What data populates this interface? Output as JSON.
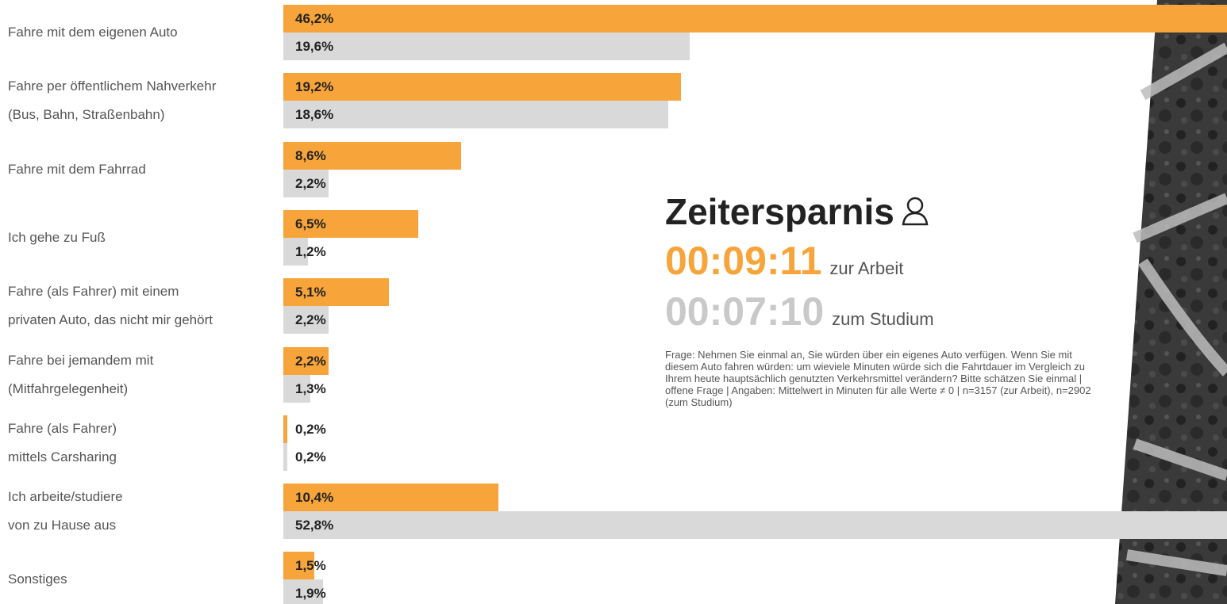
{
  "chart_data": {
    "type": "bar",
    "orientation": "horizontal",
    "categories": [
      "Fahre mit dem eigenen Auto",
      "Fahre per öffentlichem Nahverkehr\n(Bus, Bahn, Straßenbahn)",
      "Fahre mit dem Fahrrad",
      "Ich gehe zu Fuß",
      "Fahre (als Fahrer) mit einem\nprivaten Auto, das nicht mir gehört",
      "Fahre bei jemandem mit\n(Mitfahrgelegenheit)",
      "Fahre (als Fahrer)\nmittels Carsharing",
      "Ich arbeite/studiere\nvon zu Hause aus",
      "Sonstiges"
    ],
    "series": [
      {
        "color": "#f7a43a",
        "values": [
          46.2,
          19.2,
          8.6,
          6.5,
          5.1,
          2.2,
          0.2,
          10.4,
          1.5
        ],
        "value_labels": [
          "46,2%",
          "19,2%",
          "8,6%",
          "6,5%",
          "5,1%",
          "2,2%",
          "0,2%",
          "10,4%",
          "1,5%"
        ]
      },
      {
        "color": "#d9d9d9",
        "values": [
          19.6,
          18.6,
          2.2,
          1.2,
          2.2,
          1.3,
          0.2,
          52.8,
          1.9
        ],
        "value_labels": [
          "19,6%",
          "18,6%",
          "2,2%",
          "1,2%",
          "2,2%",
          "1,3%",
          "0,2%",
          "52,8%",
          "1,9%"
        ]
      }
    ]
  },
  "panel": {
    "title": "Zeitersparnis",
    "rows": [
      {
        "time": "00:09:11",
        "label": "zur Arbeit"
      },
      {
        "time": "00:07:10",
        "label": "zum Studium"
      }
    ],
    "note": "Frage: Nehmen Sie einmal an, Sie würden über ein eigenes Auto verfügen. Wenn Sie mit diesem Auto fahren würden: um wieviele Minuten würde sich die Fahrtdauer im Vergleich zu Ihrem heute hauptsächlich genutzten Verkehrsmittel verändern? Bitte schätzen Sie einmal | offene Frage | Angaben: Mittelwert in Minuten für alle Werte ≠ 0 | n=3157 (zur Arbeit), n=2902 (zum Studium)"
  }
}
